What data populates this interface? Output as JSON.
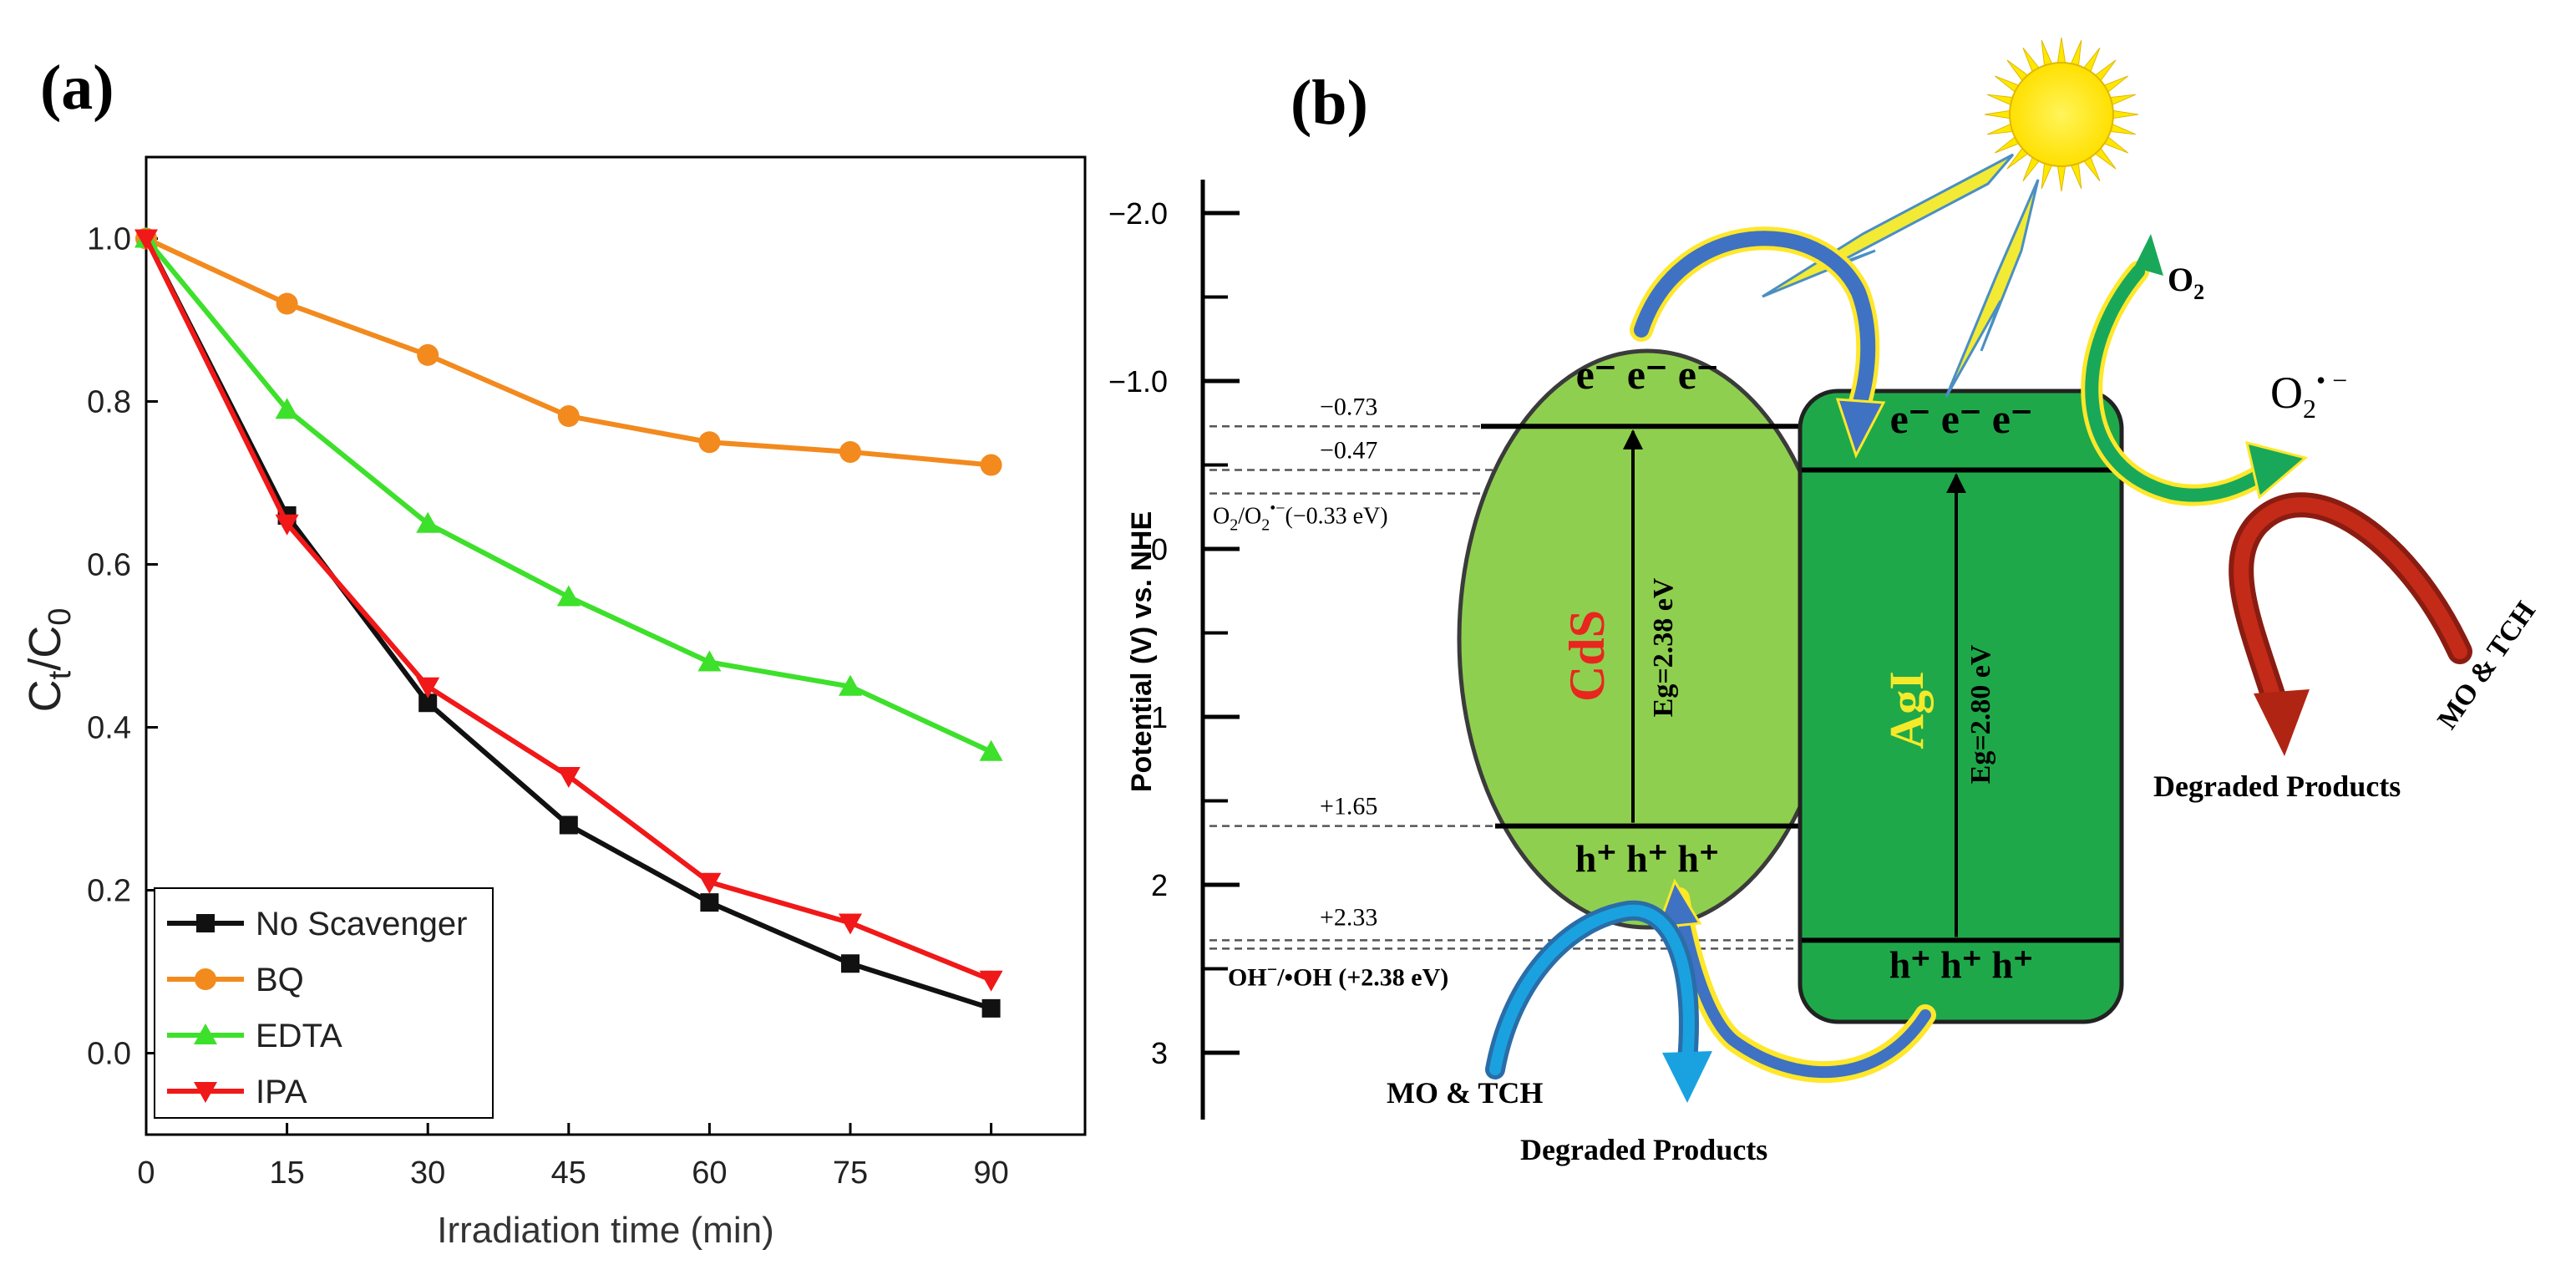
{
  "panel_a": {
    "label": "(a)",
    "chart_data": {
      "type": "line",
      "title": "",
      "xlabel": "Irradiation time (min)",
      "ylabel": "Ct/C0",
      "ylabel_main": "C",
      "ylabel_sub1": "t",
      "ylabel_slash": "/C",
      "ylabel_sub2": "0",
      "x": [
        0,
        15,
        30,
        45,
        60,
        75,
        90
      ],
      "xticks": [
        "0",
        "15",
        "30",
        "45",
        "60",
        "75",
        "90"
      ],
      "yticks": [
        "0.0",
        "0.2",
        "0.4",
        "0.6",
        "0.8",
        "1.0"
      ],
      "xlim": [
        0,
        100
      ],
      "ylim": [
        -0.1,
        1.1
      ],
      "grid": false,
      "legend_position": "bottom-left",
      "series": [
        {
          "name": "No Scavenger",
          "color": "#111111",
          "marker": "square",
          "values": [
            1.0,
            0.66,
            0.43,
            0.28,
            0.185,
            0.11,
            0.055
          ]
        },
        {
          "name": "BQ",
          "color": "#f28a1e",
          "marker": "circle",
          "values": [
            1.0,
            0.92,
            0.857,
            0.782,
            0.75,
            0.738,
            0.722
          ]
        },
        {
          "name": "EDTA",
          "color": "#3de02a",
          "marker": "triangle-up",
          "values": [
            1.0,
            0.79,
            0.65,
            0.56,
            0.48,
            0.45,
            0.37
          ]
        },
        {
          "name": "IPA",
          "color": "#f01818",
          "marker": "triangle-down",
          "values": [
            1.0,
            0.65,
            0.45,
            0.34,
            0.21,
            0.16,
            0.09
          ]
        }
      ]
    }
  },
  "panel_b": {
    "label": "(b)",
    "axis": {
      "label": "Potential (V) vs. NHE",
      "ticks": [
        "−2.0",
        "−1.0",
        "0",
        "1",
        "2",
        "3"
      ],
      "tick_values": [
        -2,
        -1,
        0,
        1,
        2,
        3
      ],
      "range": [
        -2.2,
        3.4
      ]
    },
    "levels": {
      "cds_cb": {
        "text": "−0.73",
        "value": -0.73
      },
      "agi_cb": {
        "text": "−0.47",
        "value": -0.47
      },
      "o2_redox": {
        "text_main": "O",
        "text_rest": "(−0.33 eV)",
        "text": "O2/O2•− (−0.33 eV)",
        "value": -0.33
      },
      "cds_vb": {
        "text": "+1.65",
        "value": 1.65
      },
      "agi_vb": {
        "text": "+2.33",
        "value": 2.33
      },
      "oh_redox": {
        "text": "OH−/•OH (+2.38 eV)",
        "text_main": "OH",
        "text_rest": "/•OH (+2.38 eV)",
        "value": 2.38
      }
    },
    "cds": {
      "name": "CdS",
      "bandgap": "Eg=2.38 eV",
      "electrons": "e⁻ e⁻ e⁻",
      "holes": "h⁺ h⁺ h⁺",
      "fill": "#8fcf4f"
    },
    "agi": {
      "name": "AgI",
      "bandgap": "Eg=2.80 eV",
      "electrons": "e⁻ e⁻ e⁻",
      "holes": "h⁺ h⁺ h⁺",
      "fill": "#1fa84a"
    },
    "o2": "O",
    "superoxide": "O",
    "pollutant_left": "MO & TCH",
    "pollutant_right": "MO & TCH",
    "degraded_bottom": "Degraded Products",
    "degraded_right": "Degraded Products",
    "sun_color": "#ffe800"
  }
}
